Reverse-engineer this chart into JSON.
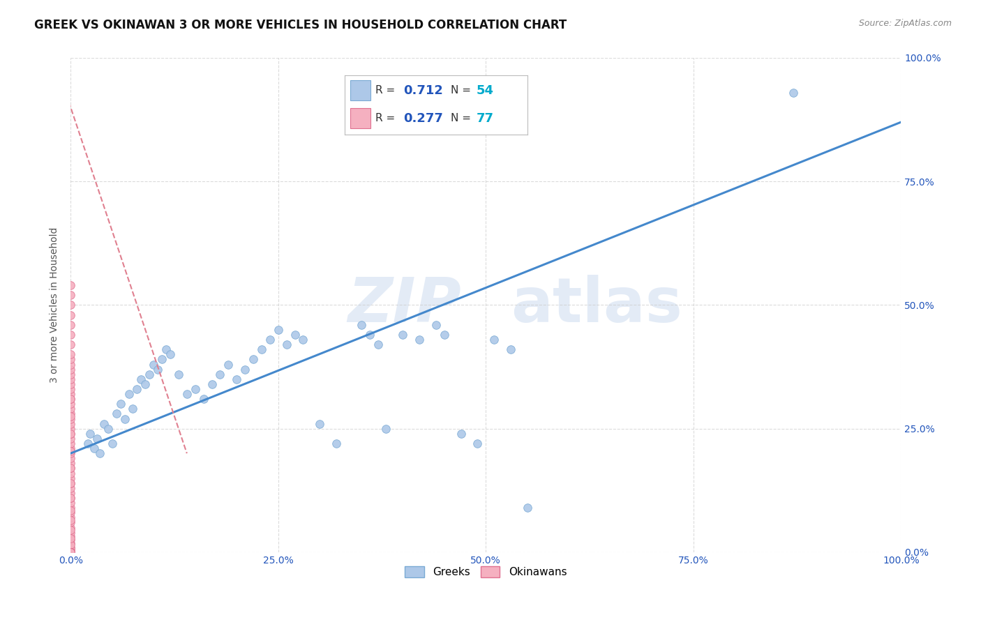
{
  "title": "GREEK VS OKINAWAN 3 OR MORE VEHICLES IN HOUSEHOLD CORRELATION CHART",
  "source": "Source: ZipAtlas.com",
  "ylabel": "3 or more Vehicles in Household",
  "xlim": [
    0,
    100
  ],
  "ylim": [
    0,
    100
  ],
  "xticks": [
    0,
    25,
    50,
    75,
    100
  ],
  "yticks": [
    0,
    25,
    50,
    75,
    100
  ],
  "xticklabels": [
    "0.0%",
    "25.0%",
    "50.0%",
    "75.0%",
    "100.0%"
  ],
  "yticklabels": [
    "0.0%",
    "25.0%",
    "50.0%",
    "75.0%",
    "100.0%"
  ],
  "watermark_zip": "ZIP",
  "watermark_atlas": "atlas",
  "greek_R": "0.712",
  "greek_N": "54",
  "okinawan_R": "0.277",
  "okinawan_N": "77",
  "greek_color": "#adc8e8",
  "greek_edge_color": "#7aaad4",
  "okinawan_color": "#f5b0c0",
  "okinawan_edge_color": "#e07090",
  "trend_blue": "#4488cc",
  "trend_pink": "#e08090",
  "R_color": "#2255bb",
  "N_color": "#00aacc",
  "background_color": "#ffffff",
  "grid_color": "#cccccc",
  "title_fontsize": 12,
  "source_fontsize": 9,
  "axis_label_fontsize": 10,
  "tick_fontsize": 10,
  "marker_size": 70,
  "greek_x": [
    2.1,
    2.3,
    2.8,
    3.2,
    3.5,
    4.0,
    4.5,
    5.0,
    5.5,
    6.0,
    6.5,
    7.0,
    7.5,
    8.0,
    8.5,
    9.0,
    9.5,
    10.0,
    10.5,
    11.0,
    11.5,
    12.0,
    13.0,
    14.0,
    15.0,
    16.0,
    17.0,
    18.0,
    19.0,
    20.0,
    21.0,
    22.0,
    23.0,
    24.0,
    25.0,
    26.0,
    27.0,
    28.0,
    30.0,
    32.0,
    35.0,
    36.0,
    37.0,
    38.0,
    40.0,
    42.0,
    44.0,
    45.0,
    47.0,
    49.0,
    51.0,
    53.0,
    55.0,
    87.0
  ],
  "greek_y": [
    22.0,
    24.0,
    21.0,
    23.0,
    20.0,
    26.0,
    25.0,
    22.0,
    28.0,
    30.0,
    27.0,
    32.0,
    29.0,
    33.0,
    35.0,
    34.0,
    36.0,
    38.0,
    37.0,
    39.0,
    41.0,
    40.0,
    36.0,
    32.0,
    33.0,
    31.0,
    34.0,
    36.0,
    38.0,
    35.0,
    37.0,
    39.0,
    41.0,
    43.0,
    45.0,
    42.0,
    44.0,
    43.0,
    26.0,
    22.0,
    46.0,
    44.0,
    42.0,
    25.0,
    44.0,
    43.0,
    46.0,
    44.0,
    24.0,
    22.0,
    43.0,
    41.0,
    9.0,
    93.0
  ],
  "okinawan_x": [
    0.0,
    0.0,
    0.0,
    0.0,
    0.0,
    0.0,
    0.0,
    0.0,
    0.0,
    0.0,
    0.0,
    0.0,
    0.0,
    0.0,
    0.0,
    0.0,
    0.0,
    0.0,
    0.0,
    0.0,
    0.0,
    0.0,
    0.0,
    0.0,
    0.0,
    0.0,
    0.0,
    0.0,
    0.0,
    0.0,
    0.0,
    0.0,
    0.0,
    0.0,
    0.0,
    0.0,
    0.0,
    0.0,
    0.0,
    0.0,
    0.0,
    0.0,
    0.0,
    0.0,
    0.0,
    0.0,
    0.0,
    0.0,
    0.0,
    0.0,
    0.0,
    0.0,
    0.0,
    0.0,
    0.0,
    0.0,
    0.0,
    0.0,
    0.0,
    0.0,
    0.0,
    0.0,
    0.0,
    0.0,
    0.0,
    0.0,
    0.0,
    0.0,
    0.0,
    0.0,
    0.0,
    0.0,
    0.0,
    0.0,
    0.0,
    0.0,
    0.0
  ],
  "okinawan_y": [
    0.5,
    1.0,
    1.8,
    2.5,
    3.2,
    4.0,
    5.0,
    6.0,
    7.0,
    8.0,
    9.0,
    10.0,
    11.0,
    12.0,
    13.0,
    14.0,
    15.0,
    16.0,
    17.0,
    18.0,
    19.0,
    20.0,
    21.0,
    22.0,
    23.0,
    24.0,
    25.0,
    26.0,
    27.0,
    28.0,
    29.0,
    30.0,
    31.0,
    32.0,
    33.0,
    34.0,
    35.0,
    36.0,
    37.0,
    38.0,
    39.0,
    40.0,
    42.0,
    44.0,
    46.0,
    48.0,
    50.0,
    52.0,
    54.0,
    0.2,
    0.8,
    1.5,
    2.8,
    4.5,
    6.5,
    8.5,
    11.0,
    14.0,
    17.0,
    20.5,
    24.0,
    27.5,
    31.0,
    0.0,
    0.0,
    0.0,
    0.0,
    0.0,
    0.0,
    0.0,
    0.0,
    0.0,
    0.0,
    0.0,
    0.0,
    0.0,
    0.0
  ],
  "greek_trend_y0": 20.0,
  "greek_trend_y1": 87.0,
  "okinawan_trend_x0": -2,
  "okinawan_trend_x1": 14,
  "okinawan_trend_y0": 100,
  "okinawan_trend_y1": 20
}
